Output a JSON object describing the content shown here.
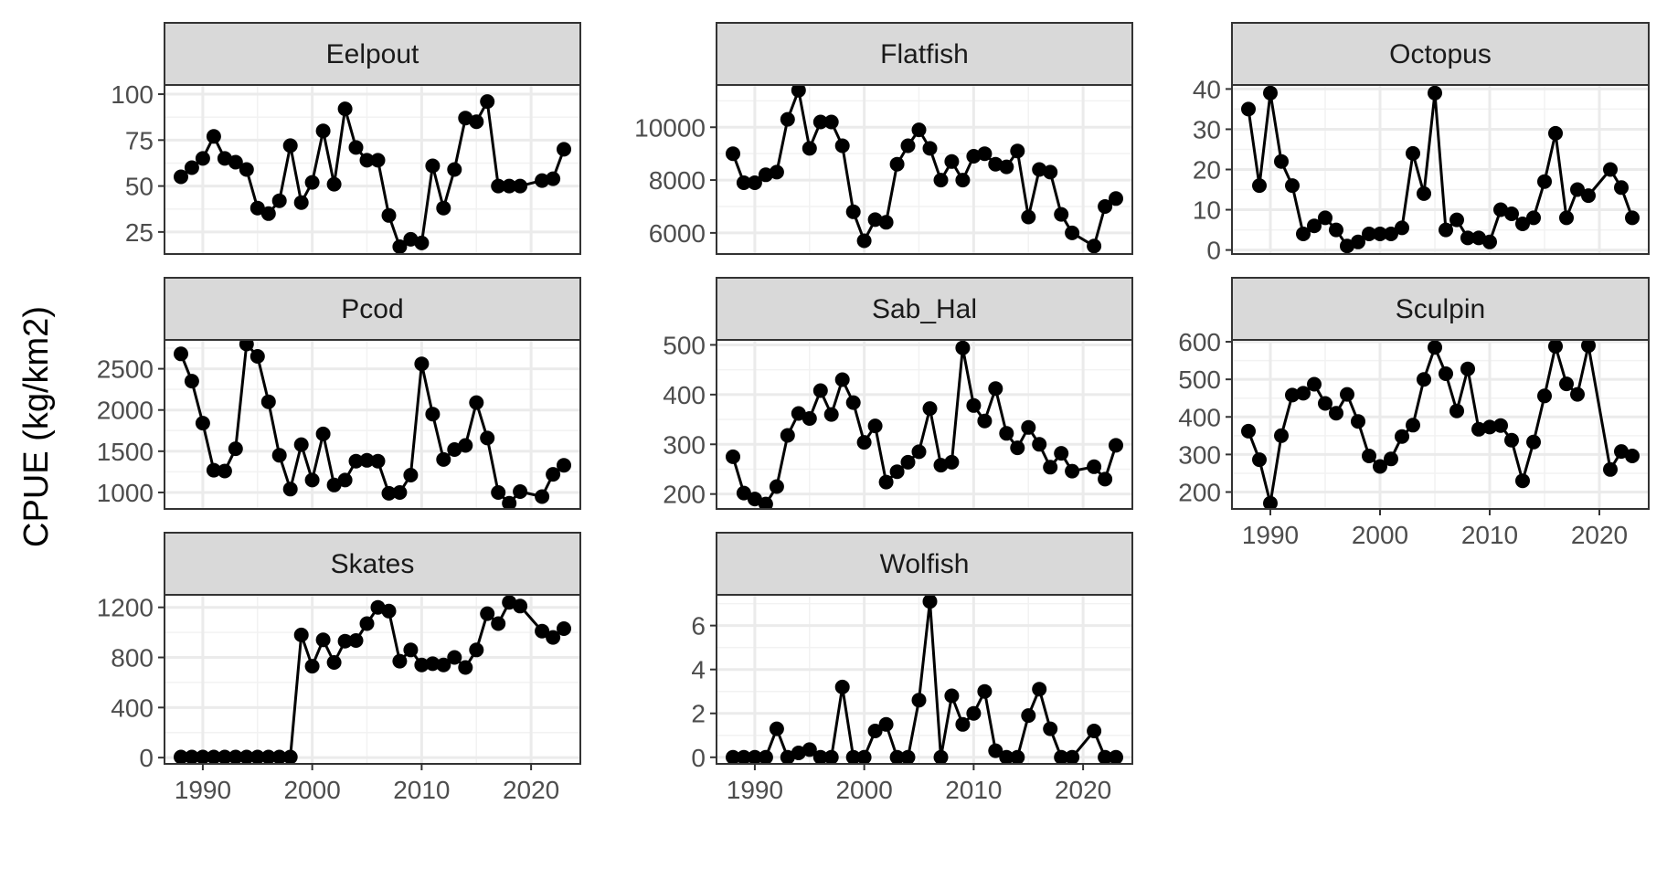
{
  "chart_data": {
    "type": "line",
    "layout": "facet_wrap",
    "ncol": 3,
    "ylabel": "CPUE (kg/km2)",
    "xlabel": "",
    "x_ticks": [
      1990,
      2000,
      2010,
      2020
    ],
    "xlim": [
      1986.5,
      2024.5
    ],
    "grid": true,
    "facets": [
      {
        "name": "Eelpout",
        "ylim": [
          13,
          105
        ],
        "y_ticks": [
          25,
          50,
          75,
          100
        ],
        "points": [
          [
            1988,
            55
          ],
          [
            1989,
            60
          ],
          [
            1990,
            65
          ],
          [
            1991,
            77
          ],
          [
            1992,
            65
          ],
          [
            1993,
            63
          ],
          [
            1994,
            59
          ],
          [
            1995,
            38
          ],
          [
            1996,
            35
          ],
          [
            1997,
            42
          ],
          [
            1998,
            72
          ],
          [
            1999,
            41
          ],
          [
            2000,
            52
          ],
          [
            2001,
            80
          ],
          [
            2002,
            51
          ],
          [
            2003,
            92
          ],
          [
            2004,
            71
          ],
          [
            2005,
            64
          ],
          [
            2006,
            64
          ],
          [
            2007,
            34
          ],
          [
            2008,
            17
          ],
          [
            2009,
            21
          ],
          [
            2010,
            19
          ],
          [
            2011,
            61
          ],
          [
            2012,
            38
          ],
          [
            2013,
            59
          ],
          [
            2014,
            87
          ],
          [
            2015,
            85
          ],
          [
            2016,
            96
          ],
          [
            2017,
            50
          ],
          [
            2018,
            50
          ],
          [
            2019,
            50
          ],
          [
            2021,
            53
          ],
          [
            2022,
            54
          ],
          [
            2023,
            70
          ]
        ]
      },
      {
        "name": "Flatfish",
        "ylim": [
          5200,
          11600
        ],
        "y_ticks": [
          6000,
          8000,
          10000
        ],
        "points": [
          [
            1988,
            9000
          ],
          [
            1989,
            7900
          ],
          [
            1990,
            7900
          ],
          [
            1991,
            8200
          ],
          [
            1992,
            8300
          ],
          [
            1993,
            10300
          ],
          [
            1994,
            11400
          ],
          [
            1995,
            9200
          ],
          [
            1996,
            10200
          ],
          [
            1997,
            10200
          ],
          [
            1998,
            9300
          ],
          [
            1999,
            6800
          ],
          [
            2000,
            5700
          ],
          [
            2001,
            6500
          ],
          [
            2002,
            6400
          ],
          [
            2003,
            8600
          ],
          [
            2004,
            9300
          ],
          [
            2005,
            9900
          ],
          [
            2006,
            9200
          ],
          [
            2007,
            8000
          ],
          [
            2008,
            8700
          ],
          [
            2009,
            8000
          ],
          [
            2010,
            8900
          ],
          [
            2011,
            9000
          ],
          [
            2012,
            8600
          ],
          [
            2013,
            8500
          ],
          [
            2014,
            9100
          ],
          [
            2015,
            6600
          ],
          [
            2016,
            8400
          ],
          [
            2017,
            8300
          ],
          [
            2018,
            6700
          ],
          [
            2019,
            6000
          ],
          [
            2021,
            5500
          ],
          [
            2022,
            7000
          ],
          [
            2023,
            7300
          ]
        ]
      },
      {
        "name": "Octopus",
        "ylim": [
          -1,
          41
        ],
        "y_ticks": [
          0,
          10,
          20,
          30,
          40
        ],
        "points": [
          [
            1988,
            35
          ],
          [
            1989,
            16
          ],
          [
            1990,
            39
          ],
          [
            1991,
            22
          ],
          [
            1992,
            16
          ],
          [
            1993,
            4
          ],
          [
            1994,
            6
          ],
          [
            1995,
            8
          ],
          [
            1996,
            5
          ],
          [
            1997,
            1
          ],
          [
            1998,
            2
          ],
          [
            1999,
            4
          ],
          [
            2000,
            4
          ],
          [
            2001,
            4
          ],
          [
            2002,
            5.5
          ],
          [
            2003,
            24
          ],
          [
            2004,
            14
          ],
          [
            2005,
            39
          ],
          [
            2006,
            5
          ],
          [
            2007,
            7.5
          ],
          [
            2008,
            3
          ],
          [
            2009,
            3
          ],
          [
            2010,
            2
          ],
          [
            2011,
            10
          ],
          [
            2012,
            9
          ],
          [
            2013,
            6.5
          ],
          [
            2014,
            8
          ],
          [
            2015,
            17
          ],
          [
            2016,
            29
          ],
          [
            2017,
            8
          ],
          [
            2018,
            15
          ],
          [
            2019,
            13.5
          ],
          [
            2021,
            20
          ],
          [
            2022,
            15.5
          ],
          [
            2023,
            8
          ]
        ]
      },
      {
        "name": "Pcod",
        "ylim": [
          800,
          2850
        ],
        "y_ticks": [
          1000,
          1500,
          2000,
          2500
        ],
        "points": [
          [
            1988,
            2680
          ],
          [
            1989,
            2350
          ],
          [
            1990,
            1840
          ],
          [
            1991,
            1270
          ],
          [
            1992,
            1260
          ],
          [
            1993,
            1530
          ],
          [
            1994,
            2800
          ],
          [
            1995,
            2650
          ],
          [
            1996,
            2100
          ],
          [
            1997,
            1450
          ],
          [
            1998,
            1040
          ],
          [
            1999,
            1580
          ],
          [
            2000,
            1150
          ],
          [
            2001,
            1710
          ],
          [
            2002,
            1090
          ],
          [
            2003,
            1150
          ],
          [
            2004,
            1380
          ],
          [
            2005,
            1390
          ],
          [
            2006,
            1380
          ],
          [
            2007,
            990
          ],
          [
            2008,
            1000
          ],
          [
            2009,
            1210
          ],
          [
            2010,
            2560
          ],
          [
            2011,
            1950
          ],
          [
            2012,
            1400
          ],
          [
            2013,
            1520
          ],
          [
            2014,
            1570
          ],
          [
            2015,
            2090
          ],
          [
            2016,
            1660
          ],
          [
            2017,
            1000
          ],
          [
            2018,
            870
          ],
          [
            2019,
            1010
          ],
          [
            2021,
            950
          ],
          [
            2022,
            1220
          ],
          [
            2023,
            1330
          ]
        ]
      },
      {
        "name": "Sab_Hal",
        "ylim": [
          170,
          510
        ],
        "y_ticks": [
          200,
          300,
          400,
          500
        ],
        "points": [
          [
            1988,
            275
          ],
          [
            1989,
            202
          ],
          [
            1990,
            190
          ],
          [
            1991,
            180
          ],
          [
            1992,
            215
          ],
          [
            1993,
            318
          ],
          [
            1994,
            362
          ],
          [
            1995,
            352
          ],
          [
            1996,
            408
          ],
          [
            1997,
            360
          ],
          [
            1998,
            430
          ],
          [
            1999,
            384
          ],
          [
            2000,
            304
          ],
          [
            2001,
            337
          ],
          [
            2002,
            224
          ],
          [
            2003,
            245
          ],
          [
            2004,
            264
          ],
          [
            2005,
            285
          ],
          [
            2006,
            372
          ],
          [
            2007,
            258
          ],
          [
            2008,
            264
          ],
          [
            2009,
            494
          ],
          [
            2010,
            378
          ],
          [
            2011,
            347
          ],
          [
            2012,
            412
          ],
          [
            2013,
            322
          ],
          [
            2014,
            293
          ],
          [
            2015,
            334
          ],
          [
            2016,
            300
          ],
          [
            2017,
            254
          ],
          [
            2018,
            282
          ],
          [
            2019,
            246
          ],
          [
            2021,
            255
          ],
          [
            2022,
            230
          ],
          [
            2023,
            298
          ]
        ]
      },
      {
        "name": "Sculpin",
        "ylim": [
          155,
          605
        ],
        "y_ticks": [
          200,
          300,
          400,
          500,
          600
        ],
        "points": [
          [
            1988,
            362
          ],
          [
            1989,
            286
          ],
          [
            1990,
            170
          ],
          [
            1991,
            350
          ],
          [
            1992,
            458
          ],
          [
            1993,
            463
          ],
          [
            1994,
            487
          ],
          [
            1995,
            436
          ],
          [
            1996,
            410
          ],
          [
            1997,
            460
          ],
          [
            1998,
            388
          ],
          [
            1999,
            296
          ],
          [
            2000,
            268
          ],
          [
            2001,
            288
          ],
          [
            2002,
            348
          ],
          [
            2003,
            378
          ],
          [
            2004,
            500
          ],
          [
            2005,
            585
          ],
          [
            2006,
            515
          ],
          [
            2007,
            416
          ],
          [
            2008,
            528
          ],
          [
            2009,
            367
          ],
          [
            2010,
            373
          ],
          [
            2011,
            377
          ],
          [
            2012,
            338
          ],
          [
            2013,
            230
          ],
          [
            2014,
            333
          ],
          [
            2015,
            456
          ],
          [
            2016,
            588
          ],
          [
            2017,
            488
          ],
          [
            2018,
            460
          ],
          [
            2019,
            590
          ],
          [
            2021,
            260
          ],
          [
            2022,
            308
          ],
          [
            2023,
            296
          ]
        ]
      },
      {
        "name": "Skates",
        "ylim": [
          -50,
          1300
        ],
        "y_ticks": [
          0,
          400,
          800,
          1200
        ],
        "points": [
          [
            1988,
            5
          ],
          [
            1989,
            5
          ],
          [
            1990,
            5
          ],
          [
            1991,
            5
          ],
          [
            1992,
            5
          ],
          [
            1993,
            5
          ],
          [
            1994,
            5
          ],
          [
            1995,
            5
          ],
          [
            1996,
            5
          ],
          [
            1997,
            5
          ],
          [
            1998,
            5
          ],
          [
            1999,
            980
          ],
          [
            2000,
            730
          ],
          [
            2001,
            940
          ],
          [
            2002,
            760
          ],
          [
            2003,
            930
          ],
          [
            2004,
            935
          ],
          [
            2005,
            1070
          ],
          [
            2006,
            1200
          ],
          [
            2007,
            1170
          ],
          [
            2008,
            770
          ],
          [
            2009,
            860
          ],
          [
            2010,
            740
          ],
          [
            2011,
            750
          ],
          [
            2012,
            740
          ],
          [
            2013,
            800
          ],
          [
            2014,
            720
          ],
          [
            2015,
            860
          ],
          [
            2016,
            1150
          ],
          [
            2017,
            1070
          ],
          [
            2018,
            1240
          ],
          [
            2019,
            1210
          ],
          [
            2021,
            1010
          ],
          [
            2022,
            960
          ],
          [
            2023,
            1030
          ]
        ]
      },
      {
        "name": "Wolfish",
        "ylim": [
          -0.3,
          7.4
        ],
        "y_ticks": [
          0,
          2,
          4,
          6
        ],
        "points": [
          [
            1988,
            0
          ],
          [
            1989,
            0
          ],
          [
            1990,
            0
          ],
          [
            1991,
            0
          ],
          [
            1992,
            1.3
          ],
          [
            1993,
            0
          ],
          [
            1994,
            0.2
          ],
          [
            1995,
            0.35
          ],
          [
            1996,
            0
          ],
          [
            1997,
            0
          ],
          [
            1998,
            3.2
          ],
          [
            1999,
            0
          ],
          [
            2000,
            0
          ],
          [
            2001,
            1.2
          ],
          [
            2002,
            1.5
          ],
          [
            2003,
            0
          ],
          [
            2004,
            0
          ],
          [
            2005,
            2.6
          ],
          [
            2006,
            7.1
          ],
          [
            2007,
            0
          ],
          [
            2008,
            2.8
          ],
          [
            2009,
            1.5
          ],
          [
            2010,
            2.0
          ],
          [
            2011,
            3.0
          ],
          [
            2012,
            0.3
          ],
          [
            2013,
            0
          ],
          [
            2014,
            0
          ],
          [
            2015,
            1.9
          ],
          [
            2016,
            3.1
          ],
          [
            2017,
            1.3
          ],
          [
            2018,
            0
          ],
          [
            2019,
            0
          ],
          [
            2021,
            1.2
          ],
          [
            2022,
            0
          ],
          [
            2023,
            0
          ]
        ]
      }
    ]
  }
}
